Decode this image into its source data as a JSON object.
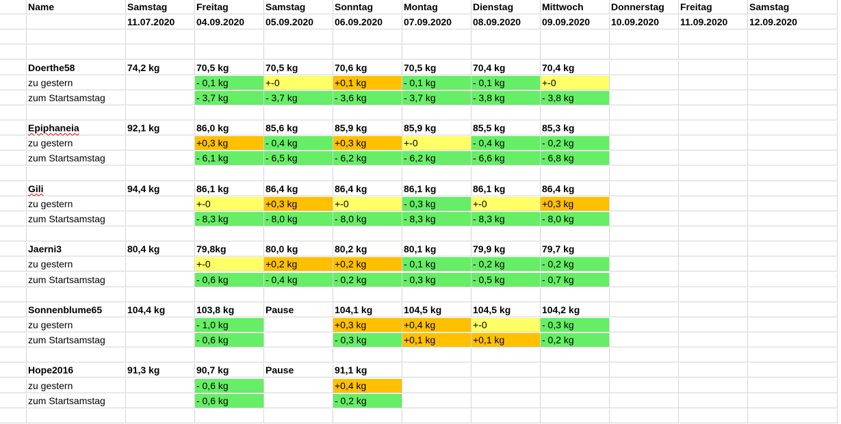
{
  "header": {
    "name_label": "Name",
    "days": [
      "Samstag",
      "Freitag",
      "Samstag",
      "Sonntag",
      "Montag",
      "Dienstag",
      "Mittwoch",
      "Donnerstag",
      "Freitag",
      "Samstag"
    ],
    "dates": [
      "11.07.2020",
      "04.09.2020",
      "05.09.2020",
      "06.09.2020",
      "07.09.2020",
      "08.09.2020",
      "09.09.2020",
      "10.09.2020",
      "11.09.2020",
      "12.09.2020"
    ]
  },
  "row_labels": {
    "diff_day": "zu gestern",
    "diff_start": "zum Startsamstag"
  },
  "colors": {
    "up": "#ffc000",
    "same": "#ffff66",
    "down": "#66ee66"
  },
  "persons": [
    {
      "name": "Doerthe58",
      "weights": [
        "74,2 kg",
        "70,5 kg",
        "70,5 kg",
        "70,6 kg",
        "70,5 kg",
        "70,4 kg",
        "70,4 kg",
        "",
        "",
        ""
      ],
      "diff_day": [
        [
          "",
          ""
        ],
        [
          "- 0,1 kg",
          "down"
        ],
        [
          "+-0",
          "same"
        ],
        [
          "+0,1 kg",
          "up"
        ],
        [
          "- 0,1 kg",
          "down"
        ],
        [
          "- 0,1 kg",
          "down"
        ],
        [
          "+-0",
          "same"
        ],
        [
          "",
          ""
        ],
        [
          "",
          ""
        ],
        [
          "",
          ""
        ]
      ],
      "diff_start": [
        [
          "",
          ""
        ],
        [
          "- 3,7 kg",
          "down"
        ],
        [
          "- 3,7 kg",
          "down"
        ],
        [
          "- 3,6 kg",
          "down"
        ],
        [
          "- 3,7 kg",
          "down"
        ],
        [
          "- 3,8 kg",
          "down"
        ],
        [
          "- 3,8 kg",
          "down"
        ],
        [
          "",
          ""
        ],
        [
          "",
          ""
        ],
        [
          "",
          ""
        ]
      ]
    },
    {
      "name": "Epiphaneia",
      "weights": [
        "92,1 kg",
        "86,0 kg",
        "85,6 kg",
        "85,9 kg",
        "85,9 kg",
        "85,5 kg",
        "85,3 kg",
        "",
        "",
        ""
      ],
      "diff_day": [
        [
          "",
          ""
        ],
        [
          "+0,3 kg",
          "up"
        ],
        [
          "- 0,4 kg",
          "down"
        ],
        [
          "+0,3 kg",
          "up"
        ],
        [
          "+-0",
          "same"
        ],
        [
          "- 0,4 kg",
          "down"
        ],
        [
          "- 0,2 kg",
          "down"
        ],
        [
          "",
          ""
        ],
        [
          "",
          ""
        ],
        [
          "",
          ""
        ]
      ],
      "diff_start": [
        [
          "",
          ""
        ],
        [
          "- 6,1 kg",
          "down"
        ],
        [
          "- 6,5 kg",
          "down"
        ],
        [
          "- 6,2 kg",
          "down"
        ],
        [
          "- 6,2 kg",
          "down"
        ],
        [
          "- 6,6 kg",
          "down"
        ],
        [
          "- 6,8 kg",
          "down"
        ],
        [
          "",
          ""
        ],
        [
          "",
          ""
        ],
        [
          "",
          ""
        ]
      ]
    },
    {
      "name": "Gili",
      "weights": [
        "94,4 kg",
        "86,1 kg",
        "86,4 kg",
        "86,4 kg",
        "86,1 kg",
        "86,1 kg",
        "86,4 kg",
        "",
        "",
        ""
      ],
      "diff_day": [
        [
          "",
          ""
        ],
        [
          "+-0",
          "same"
        ],
        [
          "+0,3 kg",
          "up"
        ],
        [
          "+-0",
          "same"
        ],
        [
          "- 0,3 kg",
          "down"
        ],
        [
          "+-0",
          "same"
        ],
        [
          "+0,3 kg",
          "up"
        ],
        [
          "",
          ""
        ],
        [
          "",
          ""
        ],
        [
          "",
          ""
        ]
      ],
      "diff_start": [
        [
          "",
          ""
        ],
        [
          "- 8,3 kg",
          "down"
        ],
        [
          "- 8,0 kg",
          "down"
        ],
        [
          "- 8,0 kg",
          "down"
        ],
        [
          "- 8,3 kg",
          "down"
        ],
        [
          "- 8,3 kg",
          "down"
        ],
        [
          "- 8,0 kg",
          "down"
        ],
        [
          "",
          ""
        ],
        [
          "",
          ""
        ],
        [
          "",
          ""
        ]
      ]
    },
    {
      "name": "Jaerni3",
      "weights": [
        "80,4 kg",
        "79,8kg",
        "80,0 kg",
        "80,2 kg",
        "80,1 kg",
        "79,9 kg",
        "79,7 kg",
        "",
        "",
        ""
      ],
      "diff_day": [
        [
          "",
          ""
        ],
        [
          "+-0",
          "same"
        ],
        [
          "+0,2 kg",
          "up"
        ],
        [
          "+0,2 kg",
          "up"
        ],
        [
          "- 0,1 kg",
          "down"
        ],
        [
          "- 0,2 kg",
          "down"
        ],
        [
          "- 0,2 kg",
          "down"
        ],
        [
          "",
          ""
        ],
        [
          "",
          ""
        ],
        [
          "",
          ""
        ]
      ],
      "diff_start": [
        [
          "",
          ""
        ],
        [
          "- 0,6 kg",
          "down"
        ],
        [
          "- 0,4 kg",
          "down"
        ],
        [
          "- 0,2 kg",
          "down"
        ],
        [
          "- 0,3 kg",
          "down"
        ],
        [
          "- 0,5 kg",
          "down"
        ],
        [
          "- 0,7 kg",
          "down"
        ],
        [
          "",
          ""
        ],
        [
          "",
          ""
        ],
        [
          "",
          ""
        ]
      ]
    },
    {
      "name": "Sonnenblume65",
      "weights": [
        "104,4 kg",
        "103,8 kg",
        "Pause",
        "104,1 kg",
        "104,5 kg",
        "104,5 kg",
        "104,2 kg",
        "",
        "",
        ""
      ],
      "diff_day": [
        [
          "",
          ""
        ],
        [
          "- 1,0 kg",
          "down"
        ],
        [
          "",
          ""
        ],
        [
          "+0,3 kg",
          "up"
        ],
        [
          "+0,4 kg",
          "up"
        ],
        [
          "+-0",
          "same"
        ],
        [
          "- 0,3 kg",
          "down"
        ],
        [
          "",
          ""
        ],
        [
          "",
          ""
        ],
        [
          "",
          ""
        ]
      ],
      "diff_start": [
        [
          "",
          ""
        ],
        [
          "- 0,6 kg",
          "down"
        ],
        [
          "",
          ""
        ],
        [
          "- 0,3 kg",
          "down"
        ],
        [
          "+0,1 kg",
          "up"
        ],
        [
          "+0,1 kg",
          "up"
        ],
        [
          "- 0,2 kg",
          "down"
        ],
        [
          "",
          ""
        ],
        [
          "",
          ""
        ],
        [
          "",
          ""
        ]
      ]
    },
    {
      "name": "Hope2016",
      "weights": [
        "91,3 kg",
        "90,7 kg",
        "Pause",
        "91,1 kg",
        "",
        "",
        "",
        "",
        "",
        ""
      ],
      "diff_day": [
        [
          "",
          ""
        ],
        [
          "- 0,6 kg",
          "down"
        ],
        [
          "",
          ""
        ],
        [
          "+0,4 kg",
          "up"
        ],
        [
          "",
          ""
        ],
        [
          "",
          ""
        ],
        [
          "",
          ""
        ],
        [
          "",
          ""
        ],
        [
          "",
          ""
        ],
        [
          "",
          ""
        ]
      ],
      "diff_start": [
        [
          "",
          ""
        ],
        [
          "- 0,6 kg",
          "down"
        ],
        [
          "",
          ""
        ],
        [
          "- 0,2 kg",
          "down"
        ],
        [
          "",
          ""
        ],
        [
          "",
          ""
        ],
        [
          "",
          ""
        ],
        [
          "",
          ""
        ],
        [
          "",
          ""
        ],
        [
          "",
          ""
        ]
      ]
    }
  ]
}
